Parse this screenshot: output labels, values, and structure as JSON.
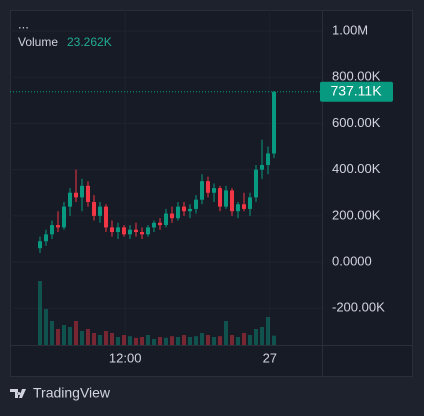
{
  "chart_data": {
    "type": "candlestick",
    "header": "...",
    "up_color": "#089981",
    "down_color": "#f23645",
    "x": [
      0,
      1,
      2,
      3,
      4,
      5,
      6,
      7,
      8,
      9,
      10,
      11,
      12,
      13,
      14,
      15,
      16,
      17,
      18,
      19,
      20,
      21,
      22,
      23,
      24,
      25,
      26,
      27,
      28,
      29,
      30,
      31,
      32,
      33,
      34,
      35,
      36,
      37,
      38,
      39
    ],
    "open": [
      60000,
      90000,
      120000,
      160000,
      150000,
      240000,
      300000,
      280000,
      330000,
      260000,
      200000,
      240000,
      150000,
      130000,
      150000,
      120000,
      140000,
      130000,
      120000,
      150000,
      170000,
      160000,
      210000,
      190000,
      240000,
      220000,
      230000,
      270000,
      350000,
      300000,
      320000,
      240000,
      310000,
      220000,
      250000,
      230000,
      280000,
      400000,
      420000,
      470000
    ],
    "high": [
      110000,
      140000,
      180000,
      220000,
      260000,
      320000,
      400000,
      360000,
      350000,
      290000,
      260000,
      250000,
      180000,
      170000,
      160000,
      160000,
      170000,
      150000,
      160000,
      180000,
      190000,
      230000,
      240000,
      260000,
      260000,
      250000,
      290000,
      380000,
      370000,
      340000,
      330000,
      330000,
      320000,
      260000,
      300000,
      300000,
      420000,
      530000,
      500000,
      740000
    ],
    "low": [
      40000,
      70000,
      100000,
      130000,
      140000,
      200000,
      260000,
      220000,
      240000,
      180000,
      170000,
      130000,
      110000,
      100000,
      110000,
      100000,
      110000,
      100000,
      110000,
      130000,
      140000,
      150000,
      170000,
      180000,
      200000,
      190000,
      210000,
      250000,
      280000,
      260000,
      220000,
      230000,
      200000,
      190000,
      220000,
      200000,
      260000,
      360000,
      380000,
      450000
    ],
    "close": [
      90000,
      120000,
      160000,
      150000,
      240000,
      300000,
      280000,
      330000,
      260000,
      200000,
      240000,
      150000,
      130000,
      150000,
      120000,
      140000,
      130000,
      120000,
      150000,
      170000,
      160000,
      210000,
      190000,
      240000,
      220000,
      230000,
      270000,
      350000,
      300000,
      320000,
      240000,
      310000,
      220000,
      250000,
      230000,
      280000,
      400000,
      420000,
      470000,
      737110
    ],
    "xlim": [
      -5,
      47
    ],
    "xticks": [
      {
        "value": 14.2,
        "label": "12:00"
      },
      {
        "value": 38.3,
        "label": "27"
      }
    ],
    "ylim": [
      -359000,
      1091000
    ],
    "yticks": [
      {
        "value": 1000000,
        "label": "1.00M"
      },
      {
        "value": 800000,
        "label": "800.00K"
      },
      {
        "value": 600000,
        "label": "600.00K"
      },
      {
        "value": 400000,
        "label": "400.00K"
      },
      {
        "value": 200000,
        "label": "200.00K"
      },
      {
        "value": 0,
        "label": "0.0000"
      },
      {
        "value": -200000,
        "label": "-200.00K"
      }
    ],
    "last_price": {
      "value": 737110,
      "label": "737.11K"
    },
    "volume": {
      "label": "Volume",
      "last": {
        "value": 23262,
        "label": "23.262K"
      },
      "ylim": [
        0,
        200000
      ],
      "values": [
        160000,
        90000,
        60000,
        40000,
        50000,
        45000,
        60000,
        35000,
        40000,
        30000,
        25000,
        35000,
        30000,
        20000,
        25000,
        22000,
        18000,
        20000,
        25000,
        15000,
        20000,
        18000,
        22000,
        20000,
        25000,
        20000,
        22000,
        30000,
        25000,
        20000,
        22000,
        60000,
        25000,
        20000,
        30000,
        25000,
        40000,
        45000,
        70000,
        23262
      ]
    },
    "brand": "TradingView"
  }
}
